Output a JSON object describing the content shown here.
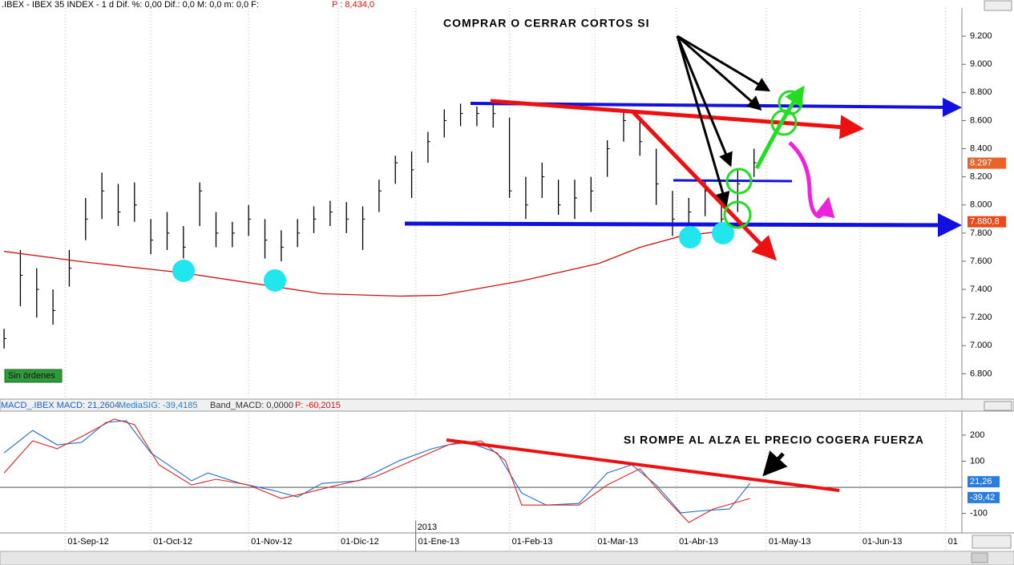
{
  "header": {
    "price": ".IBEX - IBEX 35 INDEX -  1 d Dif. %: 0,00 Dif.: 0,0 M: 0,0 m: 0,0 F:",
    "price_p": "P : 8,434,0",
    "macd": "MACD_.IBEX MACD: 21,2604",
    "macd_sig": "MediaSIG: -39,4185",
    "macd_band": "Band_MACD: 0,0000",
    "macd_p": "P: -60,2015"
  },
  "status": "Sin órdenes",
  "chart_data": [
    {
      "type": "ohlc",
      "color": "#000000",
      "x": [
        0,
        4,
        8,
        12,
        16,
        20,
        24,
        28,
        32,
        36,
        40,
        44,
        48,
        52,
        56,
        60,
        64,
        68,
        72,
        76,
        80,
        84,
        88,
        92,
        96,
        100,
        104,
        108,
        112,
        116,
        120,
        124,
        128,
        132,
        136,
        140,
        144,
        148,
        152,
        156,
        160,
        164,
        168,
        172,
        176,
        180,
        184
      ],
      "high": [
        7120,
        7680,
        7550,
        7400,
        7680,
        8050,
        8230,
        8150,
        8160,
        7900,
        7950,
        7850,
        8160,
        7950,
        7880,
        8000,
        7900,
        7820,
        7900,
        7990,
        8030,
        8020,
        7990,
        8180,
        8350,
        8380,
        8520,
        8680,
        8720,
        8700,
        8720,
        8620,
        8200,
        8300,
        8180,
        8180,
        8200,
        8460,
        8660,
        8620,
        8400,
        8100,
        8050,
        8180,
        8050,
        8250,
        8400
      ],
      "low": [
        6980,
        7280,
        7200,
        7150,
        7420,
        7750,
        7900,
        7850,
        7880,
        7650,
        7680,
        7620,
        7850,
        7700,
        7700,
        7780,
        7620,
        7600,
        7700,
        7800,
        7850,
        7800,
        7680,
        7950,
        8150,
        8050,
        8300,
        8480,
        8560,
        8560,
        8550,
        8050,
        7900,
        8050,
        7930,
        7900,
        7950,
        8200,
        8450,
        8350,
        8000,
        7780,
        7850,
        7920,
        7830,
        7950,
        8200
      ],
      "close": [
        7050,
        7500,
        7400,
        7250,
        7550,
        7900,
        8100,
        7950,
        8000,
        7750,
        7800,
        7700,
        8100,
        7800,
        7800,
        7900,
        7750,
        7700,
        7800,
        7900,
        7950,
        7900,
        7900,
        8100,
        8300,
        8250,
        8450,
        8600,
        8650,
        8650,
        8650,
        8100,
        8000,
        8200,
        8000,
        8050,
        8100,
        8400,
        8600,
        8450,
        8150,
        7900,
        7950,
        8100,
        7900,
        8150,
        8300
      ],
      "ma": {
        "color": "#d01010",
        "x": [
          0,
          19,
          44,
          78,
          97,
          107,
          127,
          146,
          156,
          166,
          176
        ],
        "values": [
          7670,
          7597,
          7517,
          7369,
          7352,
          7358,
          7460,
          7585,
          7699,
          7778,
          7813
        ]
      },
      "xlim": [
        -1,
        235
      ],
      "ylim": [
        6620,
        9400
      ],
      "yticks": [
        {
          "value": 6800,
          "label": "6.800"
        },
        {
          "value": 7000,
          "label": "7.000"
        },
        {
          "value": 7200,
          "label": "7.200"
        },
        {
          "value": 7400,
          "label": "7.400"
        },
        {
          "value": 7600,
          "label": "7.600"
        },
        {
          "value": 7800,
          "label": "7.800"
        },
        {
          "value": 8000,
          "label": "8.000"
        },
        {
          "value": 8200,
          "label": "8.200"
        },
        {
          "value": 8400,
          "label": "8.400"
        },
        {
          "value": 8600,
          "label": "8.600"
        },
        {
          "value": 8800,
          "label": "8.800"
        },
        {
          "value": 9000,
          "label": "9.000"
        },
        {
          "value": 9200,
          "label": "9.200"
        }
      ],
      "price_tags": [
        {
          "value": 8297,
          "label": "8.297",
          "color": "#e8642a"
        },
        {
          "value": 7880.8,
          "label": "7.880,8",
          "color": "#ea4a1a"
        }
      ],
      "annotations": [
        "COMPRAR O CERRAR CORTOS SI"
      ]
    },
    {
      "type": "line",
      "series": [
        {
          "color": "#1f6fd0",
          "x": [
            0,
            7,
            13,
            19,
            25,
            30,
            36,
            46,
            50,
            58,
            66,
            72,
            78,
            87,
            97,
            105,
            113,
            121,
            127,
            133,
            141,
            148,
            154,
            160,
            166,
            172,
            178,
            183
          ],
          "values": [
            132,
            218,
            163,
            172,
            249,
            255,
            132,
            25,
            55,
            15,
            -12,
            -37,
            15,
            25,
            102,
            148,
            178,
            132,
            -22,
            -68,
            -62,
            55,
            86,
            9,
            -98,
            -89,
            -83,
            15
          ]
        },
        {
          "color": "#e02020",
          "x": [
            0,
            7,
            13,
            19,
            27,
            32,
            38,
            46,
            52,
            60,
            68,
            74,
            82,
            91,
            101,
            109,
            117,
            123,
            127,
            133,
            141,
            148,
            156,
            162,
            168,
            174,
            183
          ],
          "values": [
            55,
            178,
            148,
            194,
            262,
            240,
            86,
            9,
            31,
            9,
            -43,
            -22,
            9,
            40,
            108,
            163,
            178,
            102,
            -68,
            -68,
            -68,
            9,
            71,
            -37,
            -135,
            -83,
            -43
          ]
        }
      ],
      "xlim": [
        -1,
        235
      ],
      "ylim": [
        -175,
        292
      ],
      "yticks": [
        -100,
        100,
        200
      ],
      "xticks": [
        {
          "value": 15,
          "label": "01-Sep-12"
        },
        {
          "value": 36,
          "label": "01-Oct-12"
        },
        {
          "value": 60,
          "label": "01-Nov-12"
        },
        {
          "value": 82,
          "label": "01-Dic-12"
        },
        {
          "value": 101,
          "label": "01-Ene-13"
        },
        {
          "value": 124,
          "label": "01-Feb-13"
        },
        {
          "value": 145,
          "label": "01-Mar-13"
        },
        {
          "value": 165,
          "label": "01-Abr-13"
        },
        {
          "value": 187,
          "label": "01-May-13"
        },
        {
          "value": 210,
          "label": "01-Jun-13"
        },
        {
          "value": 231,
          "label": "01"
        }
      ],
      "year_marker": {
        "value": 101,
        "label": "2013"
      },
      "value_tags": [
        {
          "value": 21.26,
          "label": "21,26",
          "color": "#2a7de0"
        },
        {
          "value": -39.42,
          "label": "-39,42",
          "color": "#2a7de0"
        }
      ],
      "annotations": [
        "SI ROMPE AL ALZA EL PRECIO COGERA  FUERZA"
      ]
    }
  ]
}
